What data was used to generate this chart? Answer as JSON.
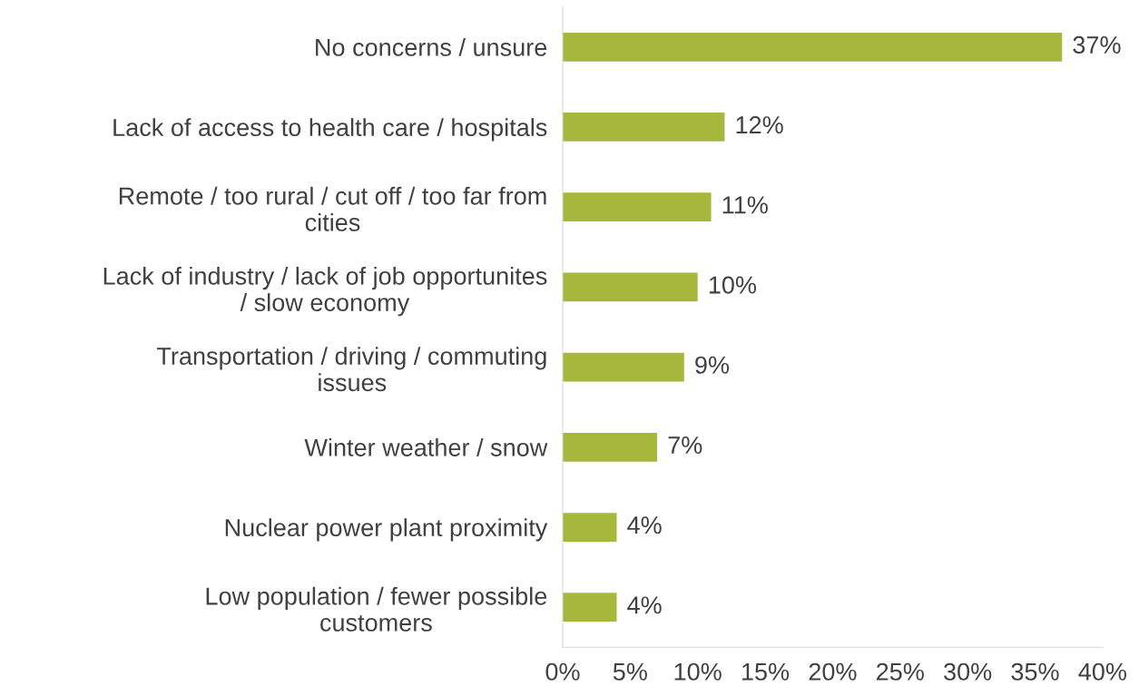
{
  "chart_data": {
    "type": "bar",
    "orientation": "horizontal",
    "categories": [
      "No concerns / unsure",
      "Lack of access to health care / hospitals",
      "Remote / too rural / cut off / too far from\ncities",
      "Lack of industry / lack of job opportunites\n/ slow economy",
      "Transportation / driving / commuting\nissues",
      "Winter weather / snow",
      "Nuclear power plant proximity",
      "Low population / fewer possible\ncustomers"
    ],
    "values": [
      37,
      12,
      11,
      10,
      9,
      7,
      4,
      4
    ],
    "color": "#a5b83b",
    "value_labels": [
      "37%",
      "12%",
      "11%",
      "10%",
      "9%",
      "7%",
      "4%",
      "4%"
    ],
    "xlim": [
      0,
      40
    ],
    "xticks": [
      {
        "value": 0,
        "label": "0%"
      },
      {
        "value": 5,
        "label": "5%"
      },
      {
        "value": 10,
        "label": "10%"
      },
      {
        "value": 15,
        "label": "15%"
      },
      {
        "value": 20,
        "label": "20%"
      },
      {
        "value": 25,
        "label": "25%"
      },
      {
        "value": 30,
        "label": "30%"
      },
      {
        "value": 35,
        "label": "35%"
      },
      {
        "value": 40,
        "label": "40%"
      }
    ],
    "grid": false,
    "legend": false
  }
}
